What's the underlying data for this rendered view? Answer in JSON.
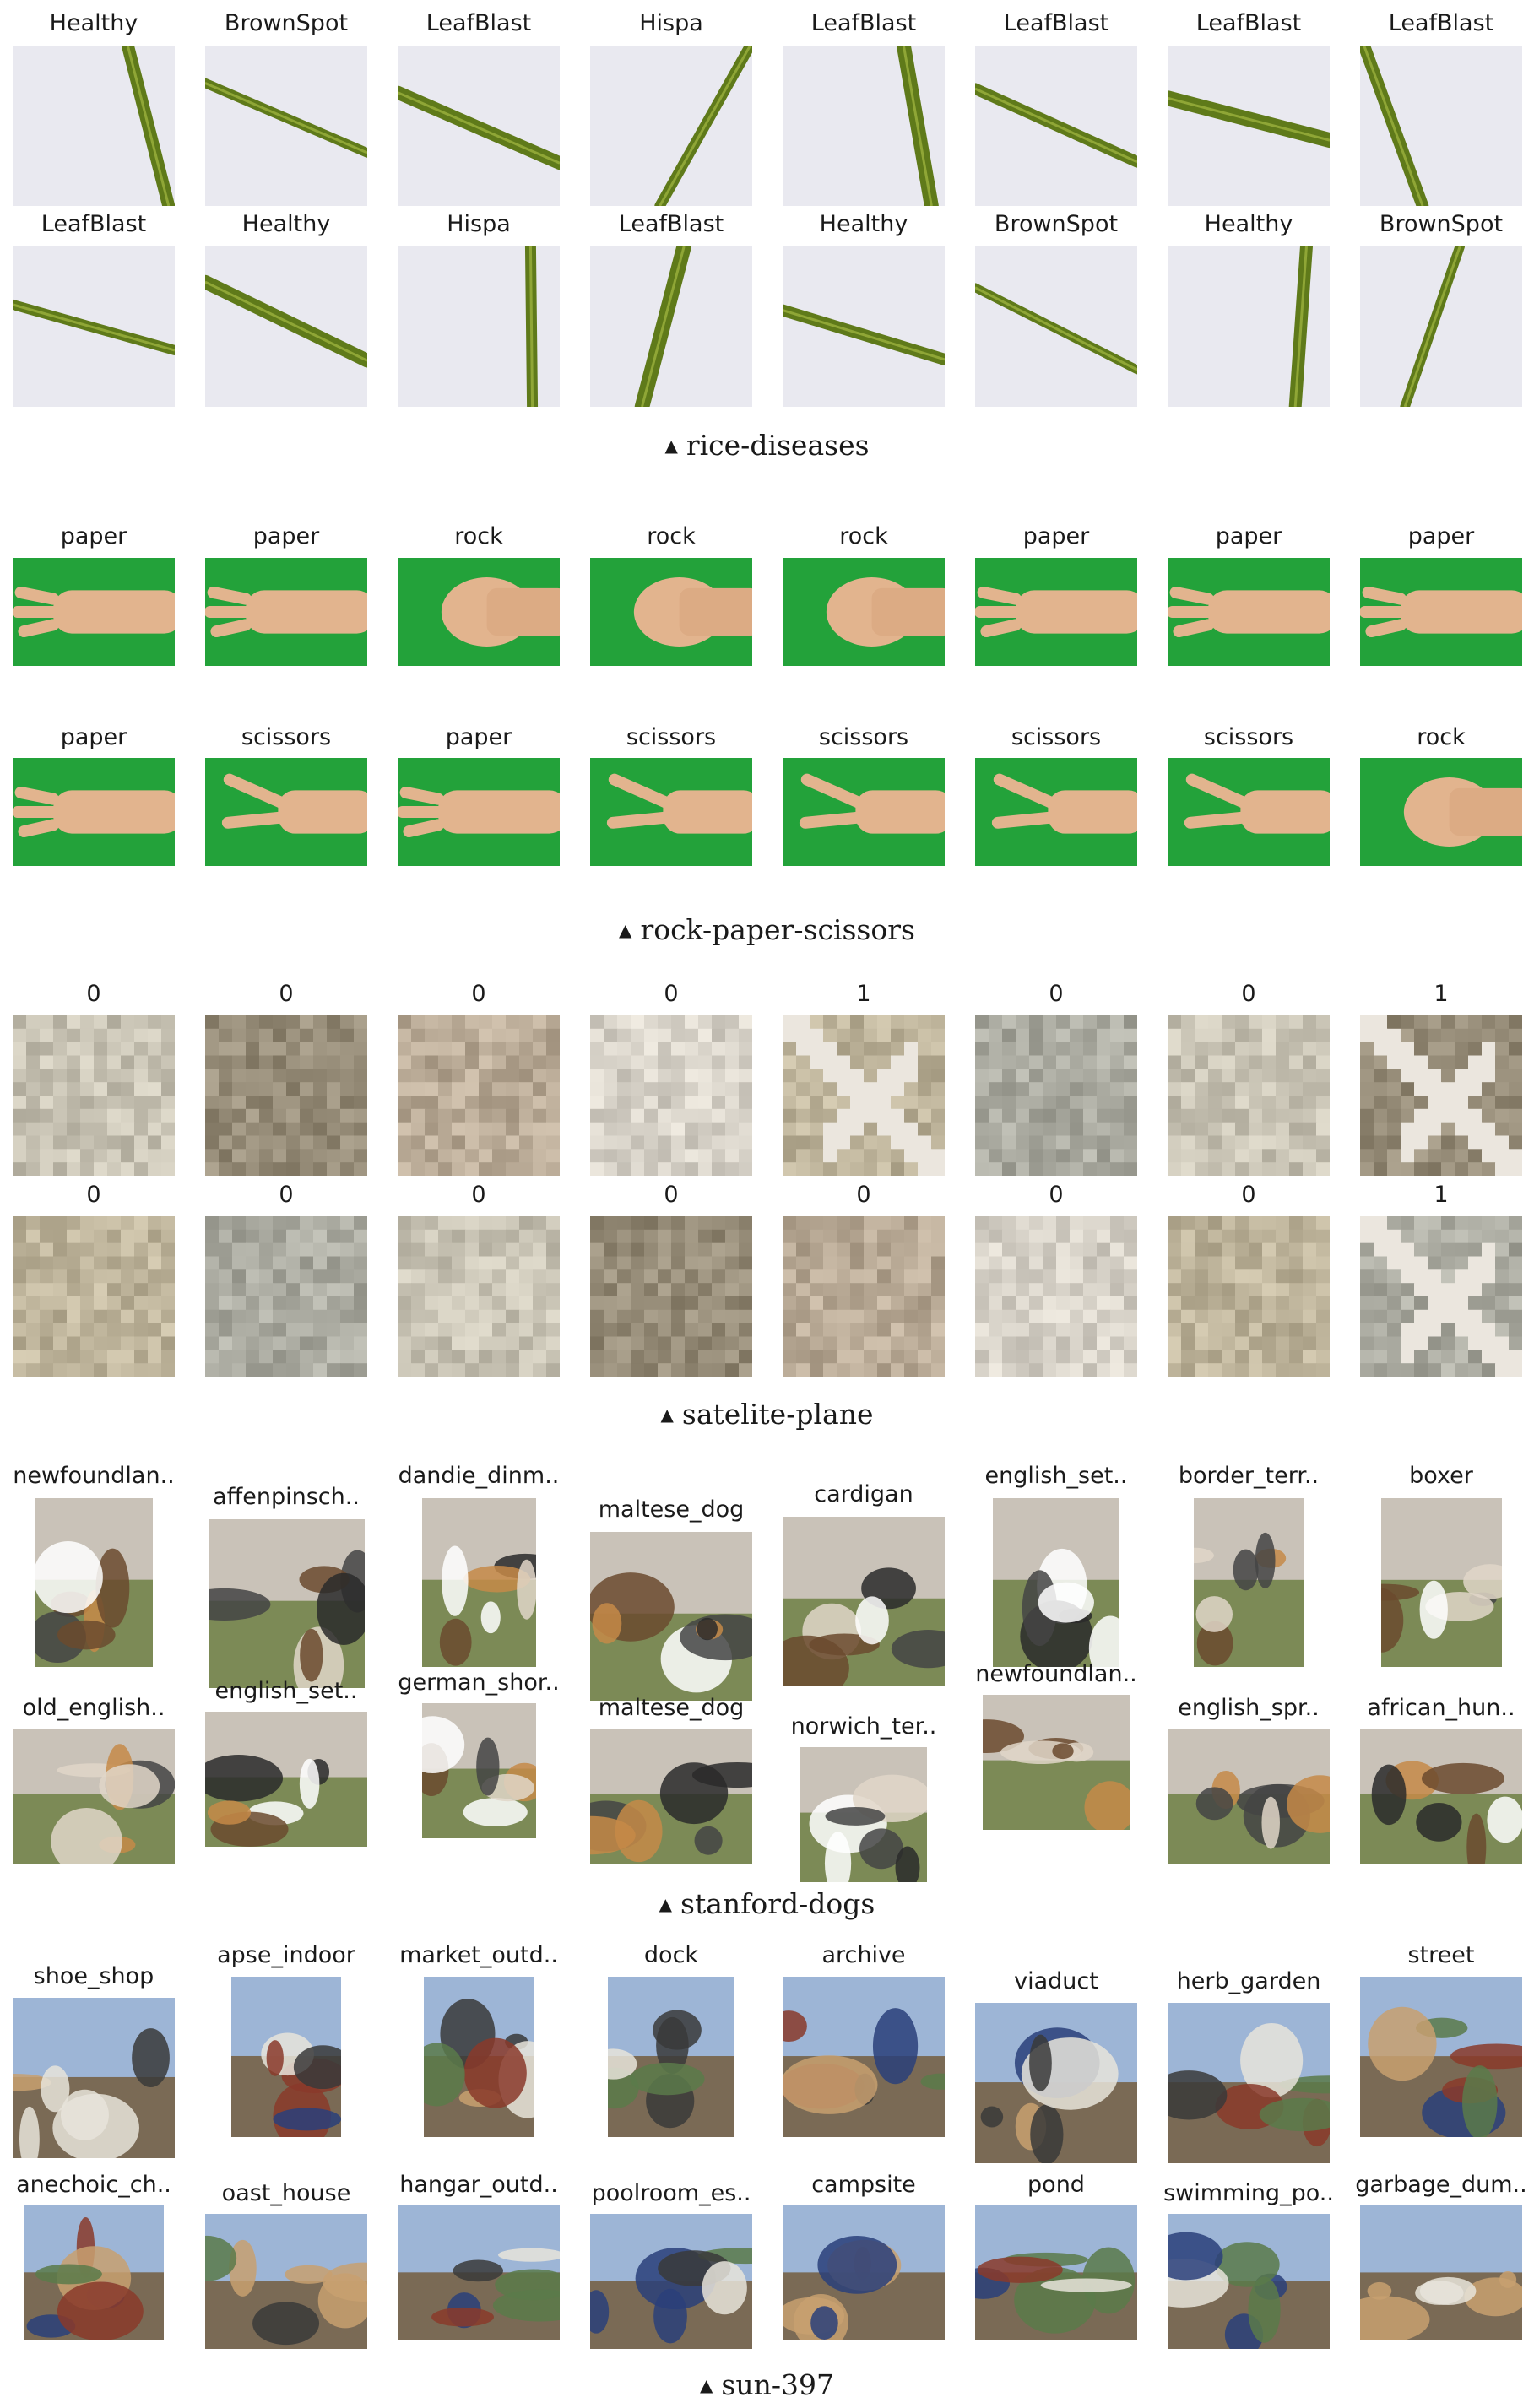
{
  "sections": [
    {
      "id": "rice-diseases",
      "caption": "rice-diseases",
      "labels": [
        [
          "Healthy",
          "BrownSpot",
          "LeafBlast",
          "Hispa",
          "LeafBlast",
          "LeafBlast",
          "LeafBlast",
          "LeafBlast"
        ],
        [
          "LeafBlast",
          "Healthy",
          "Hispa",
          "LeafBlast",
          "Healthy",
          "BrownSpot",
          "Healthy",
          "BrownSpot"
        ]
      ]
    },
    {
      "id": "rock-paper-scissors",
      "caption": "rock-paper-scissors",
      "labels": [
        [
          "paper",
          "paper",
          "rock",
          "rock",
          "rock",
          "paper",
          "paper",
          "paper"
        ],
        [
          "paper",
          "scissors",
          "paper",
          "scissors",
          "scissors",
          "scissors",
          "scissors",
          "rock"
        ]
      ]
    },
    {
      "id": "satelite-plane",
      "caption": "satelite-plane",
      "labels": [
        [
          "0",
          "0",
          "0",
          "0",
          "1",
          "0",
          "0",
          "1"
        ],
        [
          "0",
          "0",
          "0",
          "0",
          "0",
          "0",
          "0",
          "1"
        ]
      ]
    },
    {
      "id": "stanford-dogs",
      "caption": "stanford-dogs",
      "labels": [
        [
          "newfoundlan..",
          "affenpinsch..",
          "dandie_dinm..",
          "maltese_dog",
          "cardigan",
          "english_set..",
          "border_terr..",
          "boxer"
        ],
        [
          "old_english..",
          "english_set..",
          "german_shor..",
          "maltese_dog",
          "norwich_ter..",
          "newfoundlan..",
          "english_spr..",
          "african_hun.."
        ]
      ]
    },
    {
      "id": "sun-397",
      "caption": "sun-397",
      "labels": [
        [
          "shoe_shop",
          "apse_indoor",
          "market_outd..",
          "dock",
          "archive",
          "viaduct",
          "herb_garden",
          "street"
        ],
        [
          "anechoic_ch..",
          "oast_house",
          "hangar_outd..",
          "poolroom_es..",
          "campsite",
          "pond",
          "swimming_po..",
          "garbage_dum.."
        ]
      ]
    }
  ],
  "colors": {
    "rice_bg": "#e9e9f0",
    "rice_leaf": "#6f8a1f",
    "rps_green": "#23a23a",
    "rps_skin": "#e2b48e",
    "sat_tan": "#bdb29c",
    "text": "#1a1a1a"
  }
}
